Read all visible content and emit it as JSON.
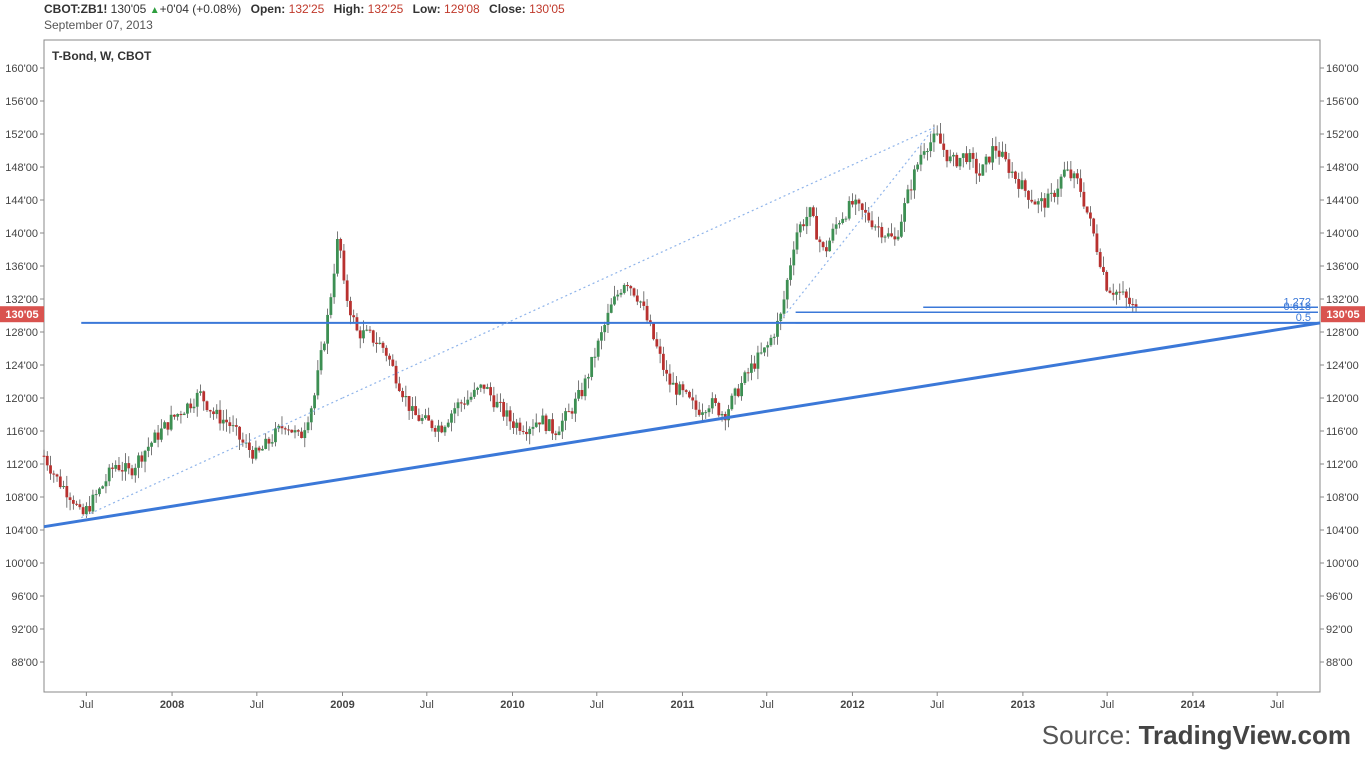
{
  "header": {
    "symbol": "CBOT:ZB1!",
    "last": "130'05",
    "change": "+0'04 (+0.08%)",
    "open_label": "Open:",
    "open": "132'25",
    "high_label": "High:",
    "high": "132'25",
    "low_label": "Low:",
    "low": "129'08",
    "close_label": "Close:",
    "close": "130'05",
    "date": "September 07, 2013"
  },
  "source": {
    "prefix": "Source: ",
    "brand": "TradingView.com"
  },
  "colors": {
    "up_candle": "#3d8f53",
    "down_candle": "#b8312f",
    "wick": "#555555",
    "drawing_line": "#3b78d8",
    "price_tag": "#d9534f",
    "axis": "#888888"
  },
  "chart_data": {
    "type": "candlestick",
    "title": "T-Bond, W, CBOT",
    "timeframe": "weekly",
    "price_format": "32nds",
    "x_range": [
      "2007-04",
      "2014-10"
    ],
    "ylim": [
      84,
      162
    ],
    "y_ticks": [
      160,
      156,
      152,
      148,
      144,
      140,
      136,
      132,
      128,
      124,
      120,
      116,
      112,
      108,
      104,
      100,
      96,
      92,
      88
    ],
    "y_tick_labels": [
      "160'00",
      "156'00",
      "152'00",
      "148'00",
      "144'00",
      "140'00",
      "136'00",
      "132'00",
      "128'00",
      "124'00",
      "120'00",
      "116'00",
      "112'00",
      "108'00",
      "104'00",
      "100'00",
      "96'00",
      "92'00",
      "88'00"
    ],
    "x_ticks": [
      {
        "date": "2007-07",
        "label": "Jul"
      },
      {
        "date": "2008-01",
        "label": "2008"
      },
      {
        "date": "2008-07",
        "label": "Jul"
      },
      {
        "date": "2009-01",
        "label": "2009"
      },
      {
        "date": "2009-07",
        "label": "Jul"
      },
      {
        "date": "2010-01",
        "label": "2010"
      },
      {
        "date": "2010-07",
        "label": "Jul"
      },
      {
        "date": "2011-01",
        "label": "2011"
      },
      {
        "date": "2011-07",
        "label": "Jul"
      },
      {
        "date": "2012-01",
        "label": "2012"
      },
      {
        "date": "2012-07",
        "label": "Jul"
      },
      {
        "date": "2013-01",
        "label": "2013"
      },
      {
        "date": "2013-07",
        "label": "Jul"
      },
      {
        "date": "2014-01",
        "label": "2014"
      },
      {
        "date": "2014-07",
        "label": "Jul"
      }
    ],
    "price_path": [
      [
        "2007-04",
        113.0
      ],
      [
        "2007-05",
        110.0
      ],
      [
        "2007-06",
        108.0
      ],
      [
        "2007-06-20",
        105.5
      ],
      [
        "2007-08",
        109.0
      ],
      [
        "2007-09",
        112.0
      ],
      [
        "2007-10",
        111.0
      ],
      [
        "2007-11",
        113.5
      ],
      [
        "2007-12",
        115.5
      ],
      [
        "2008-01",
        117.5
      ],
      [
        "2008-02",
        119.0
      ],
      [
        "2008-03",
        120.5
      ],
      [
        "2008-04",
        118.0
      ],
      [
        "2008-05",
        117.0
      ],
      [
        "2008-06",
        114.5
      ],
      [
        "2008-07",
        113.0
      ],
      [
        "2008-08",
        115.0
      ],
      [
        "2008-09",
        117.0
      ],
      [
        "2008-10",
        115.0
      ],
      [
        "2008-11",
        120.0
      ],
      [
        "2008-12",
        130.0
      ],
      [
        "2008-12-25",
        140.5
      ],
      [
        "2009-01",
        134.0
      ],
      [
        "2009-02",
        128.0
      ],
      [
        "2009-03",
        127.5
      ],
      [
        "2009-04",
        126.0
      ],
      [
        "2009-05",
        122.0
      ],
      [
        "2009-06",
        118.0
      ],
      [
        "2009-07",
        117.0
      ],
      [
        "2009-08",
        116.5
      ],
      [
        "2009-09",
        119.0
      ],
      [
        "2009-10",
        120.0
      ],
      [
        "2009-11",
        121.5
      ],
      [
        "2009-12",
        119.0
      ],
      [
        "2010-01",
        117.0
      ],
      [
        "2010-02",
        116.5
      ],
      [
        "2010-03",
        117.5
      ],
      [
        "2010-04",
        116.0
      ],
      [
        "2010-05",
        118.0
      ],
      [
        "2010-06",
        121.0
      ],
      [
        "2010-07",
        126.0
      ],
      [
        "2010-08",
        131.0
      ],
      [
        "2010-09",
        134.5
      ],
      [
        "2010-10",
        132.0
      ],
      [
        "2010-11",
        127.0
      ],
      [
        "2010-12",
        122.0
      ],
      [
        "2011-01",
        120.5
      ],
      [
        "2011-02",
        118.5
      ],
      [
        "2011-03",
        119.5
      ],
      [
        "2011-04",
        118.0
      ],
      [
        "2011-05",
        121.0
      ],
      [
        "2011-06",
        124.0
      ],
      [
        "2011-07",
        126.0
      ],
      [
        "2011-08",
        130.0
      ],
      [
        "2011-09",
        140.0
      ],
      [
        "2011-10",
        142.5
      ],
      [
        "2011-11",
        137.5
      ],
      [
        "2011-12",
        141.5
      ],
      [
        "2012-01",
        143.5
      ],
      [
        "2012-02",
        142.0
      ],
      [
        "2012-03",
        140.5
      ],
      [
        "2012-04",
        139.0
      ],
      [
        "2012-05",
        145.0
      ],
      [
        "2012-06",
        150.5
      ],
      [
        "2012-07",
        151.5
      ],
      [
        "2012-08",
        148.5
      ],
      [
        "2012-09",
        149.5
      ],
      [
        "2012-10",
        147.0
      ],
      [
        "2012-11",
        150.5
      ],
      [
        "2012-12",
        148.0
      ],
      [
        "2013-01",
        145.5
      ],
      [
        "2013-02",
        143.5
      ],
      [
        "2013-03",
        144.0
      ],
      [
        "2013-04",
        147.5
      ],
      [
        "2013-05",
        146.0
      ],
      [
        "2013-06",
        140.0
      ],
      [
        "2013-07",
        133.5
      ],
      [
        "2013-08",
        132.5
      ],
      [
        "2013-09-07",
        130.2
      ]
    ],
    "annotations": {
      "price_tag": {
        "label": "130'05",
        "value": 130.156
      },
      "support_trendline": {
        "from": {
          "date": "2007-04",
          "price": 104.4
        },
        "to": {
          "date": "2014-10",
          "price": 129.1
        }
      },
      "horizontal_line_1": {
        "from_date": "2007-06-20",
        "to_date": "2014-10",
        "price": 129.1
      },
      "fibonacci_levels": [
        {
          "label": "1.272",
          "price": 131.0,
          "from_date": "2012-06"
        },
        {
          "label": "0.618",
          "price": 130.4,
          "from_date": "2011-09"
        },
        {
          "label": "0.5",
          "price": 129.1,
          "from_date": "2011-09"
        }
      ],
      "dotted_lines": [
        {
          "from": {
            "date": "2007-06-20",
            "price": 105.5
          },
          "to": {
            "date": "2009-01",
            "price": 120.0
          }
        },
        {
          "from": {
            "date": "2009-01",
            "price": 120.0
          },
          "to": {
            "date": "2012-06-25",
            "price": 152.8
          }
        },
        {
          "from": {
            "date": "2012-06-25",
            "price": 152.8
          },
          "to": {
            "date": "2011-08",
            "price": 129.5
          }
        }
      ]
    }
  }
}
